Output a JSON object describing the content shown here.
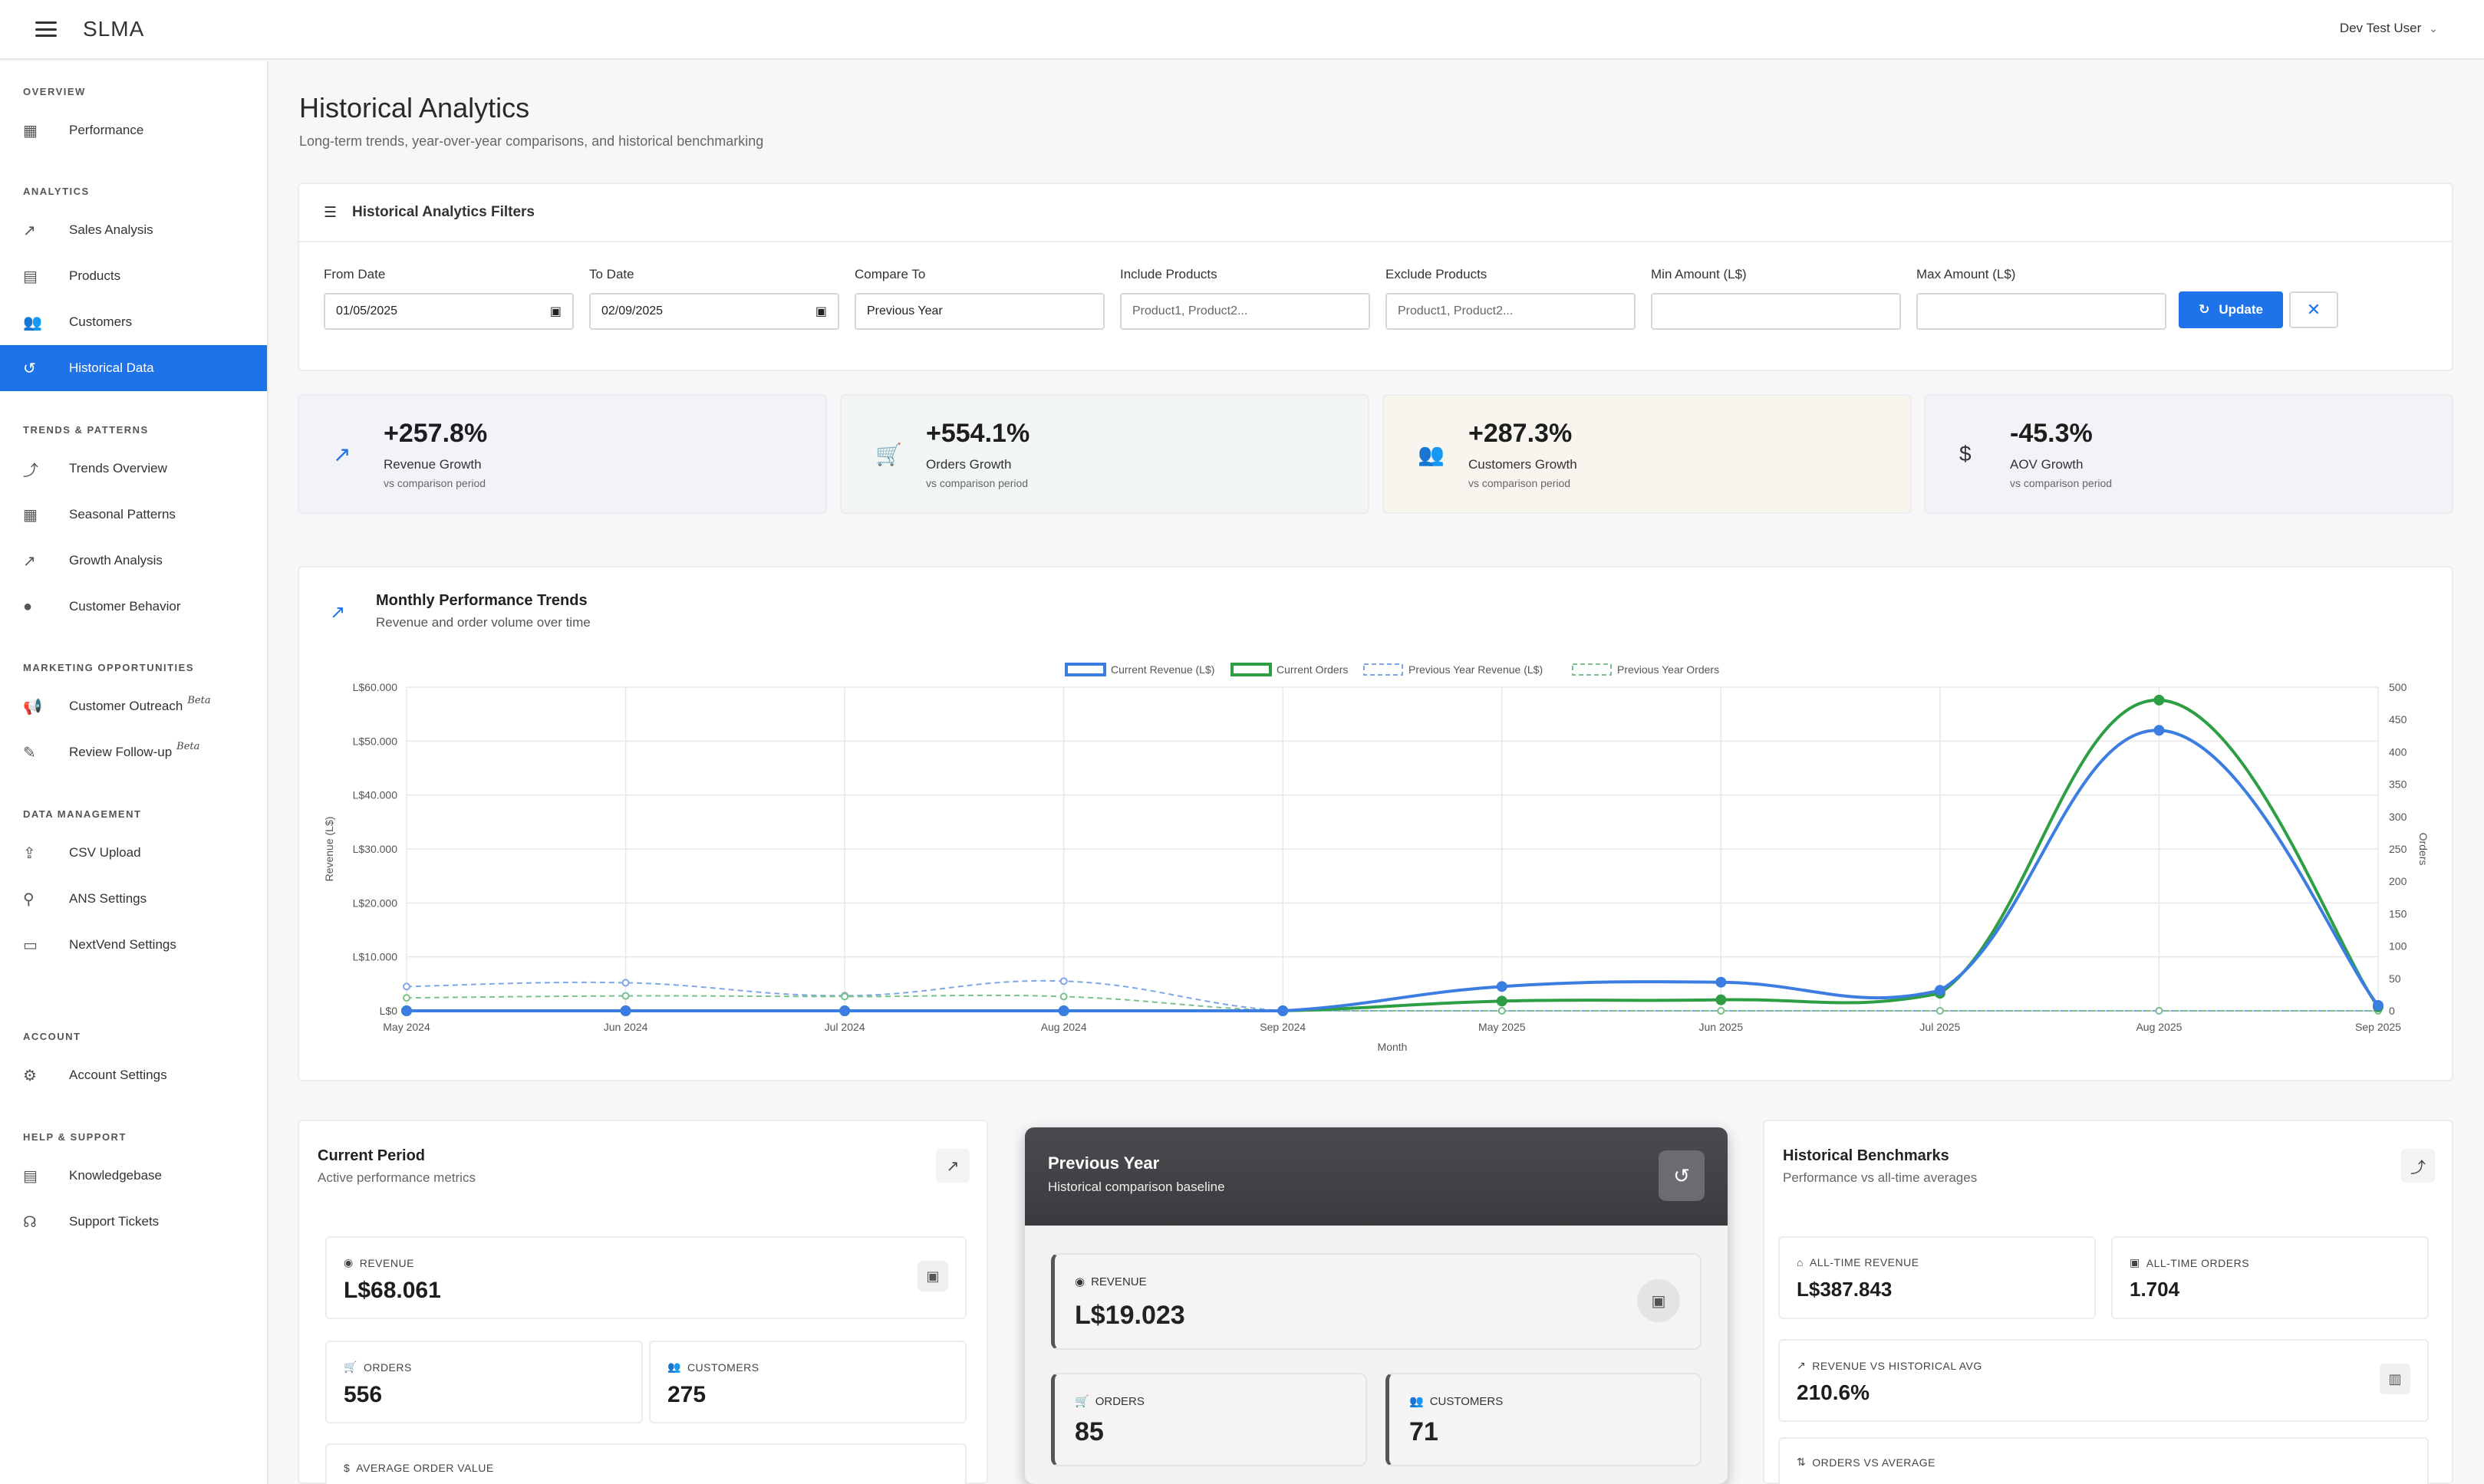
{
  "app": {
    "title": "SLMA",
    "user": "Dev Test User"
  },
  "sidebar": {
    "sections": [
      {
        "title": "OVERVIEW",
        "items": [
          {
            "label": "Performance",
            "icon": "dashboard-icon"
          }
        ]
      },
      {
        "title": "ANALYTICS",
        "items": [
          {
            "label": "Sales Analysis",
            "icon": "trending-up-icon"
          },
          {
            "label": "Products",
            "icon": "inventory-icon"
          },
          {
            "label": "Customers",
            "icon": "people-icon"
          },
          {
            "label": "Historical Data",
            "icon": "history-icon",
            "active": true
          }
        ]
      },
      {
        "title": "TRENDS & PATTERNS",
        "items": [
          {
            "label": "Trends Overview",
            "icon": "multiline-chart-icon"
          },
          {
            "label": "Seasonal Patterns",
            "icon": "calendar-icon"
          },
          {
            "label": "Growth Analysis",
            "icon": "show-chart-icon"
          },
          {
            "label": "Customer Behavior",
            "icon": "psychology-icon"
          }
        ]
      },
      {
        "title": "MARKETING OPPORTUNITIES",
        "items": [
          {
            "label": "Customer Outreach",
            "icon": "campaign-icon",
            "badge": "Beta"
          },
          {
            "label": "Review Follow-up",
            "icon": "rate-review-icon",
            "badge": "Beta"
          }
        ]
      },
      {
        "title": "DATA MANAGEMENT",
        "items": [
          {
            "label": "CSV Upload",
            "icon": "upload-file-icon"
          },
          {
            "label": "ANS Settings",
            "icon": "webhook-icon"
          },
          {
            "label": "NextVend Settings",
            "icon": "vending-icon"
          }
        ]
      },
      {
        "title": "ACCOUNT",
        "items": [
          {
            "label": "Account Settings",
            "icon": "settings-icon"
          }
        ]
      },
      {
        "title": "HELP & SUPPORT",
        "items": [
          {
            "label": "Knowledgebase",
            "icon": "library-books-icon"
          },
          {
            "label": "Support Tickets",
            "icon": "support-agent-icon"
          }
        ]
      }
    ]
  },
  "page": {
    "title": "Historical Analytics",
    "subtitle": "Long-term trends, year-over-year comparisons, and historical benchmarking"
  },
  "filters": {
    "title": "Historical Analytics Filters",
    "from_date": {
      "label": "From Date",
      "value": "01/05/2025"
    },
    "to_date": {
      "label": "To Date",
      "value": "02/09/2025"
    },
    "compare_to": {
      "label": "Compare To",
      "value": "Previous Year"
    },
    "include_products": {
      "label": "Include Products",
      "placeholder": "Product1, Product2..."
    },
    "exclude_products": {
      "label": "Exclude Products",
      "placeholder": "Product1, Product2..."
    },
    "min_amount": {
      "label": "Min Amount (L$)",
      "value": ""
    },
    "max_amount": {
      "label": "Max Amount (L$)",
      "value": ""
    },
    "update_label": "Update"
  },
  "kpis": [
    {
      "value": "+257.8%",
      "label": "Revenue Growth",
      "sub": "vs comparison period",
      "icon": "trending-up-icon",
      "bg": "#f1f3f9"
    },
    {
      "value": "+554.1%",
      "label": "Orders Growth",
      "sub": "vs comparison period",
      "icon": "cart-icon",
      "bg": "#f1f5f3"
    },
    {
      "value": "+287.3%",
      "label": "Customers Growth",
      "sub": "vs comparison period",
      "icon": "people-icon",
      "bg": "#f8f5ef"
    },
    {
      "value": "-45.3%",
      "label": "AOV Growth",
      "sub": "vs comparison period",
      "icon": "dollar-icon",
      "bg": "#f4f1f7"
    }
  ],
  "chart_data": {
    "type": "line",
    "title": "Monthly Performance Trends",
    "subtitle": "Revenue and order volume over time",
    "categories": [
      "May 2024",
      "Jun 2024",
      "Jul 2024",
      "Aug 2024",
      "Sep 2024",
      "May 2025",
      "Jun 2025",
      "Jul 2025",
      "Aug 2025",
      "Sep 2025"
    ],
    "xlabel": "Month",
    "ylabel": "Revenue (L$)",
    "y2label": "Orders",
    "ylim": [
      0,
      60000
    ],
    "y2lim": [
      0,
      500
    ],
    "yticks": [
      "L$0",
      "L$10.000",
      "L$20.000",
      "L$30.000",
      "L$40.000",
      "L$50.000",
      "L$60.000"
    ],
    "y2ticks": [
      "0",
      "50",
      "100",
      "150",
      "200",
      "250",
      "300",
      "350",
      "400",
      "450",
      "500"
    ],
    "legend_position": "top",
    "series": [
      {
        "name": "Current Revenue (L$)",
        "axis": "left",
        "color": "#3b7de0",
        "dashed": false,
        "values": [
          0,
          0,
          0,
          0,
          0,
          4500,
          5300,
          3800,
          52000,
          1000
        ]
      },
      {
        "name": "Current Orders",
        "axis": "right",
        "color": "#2e9e44",
        "dashed": false,
        "values": [
          0,
          0,
          0,
          0,
          0,
          15,
          17,
          27,
          480,
          6
        ]
      },
      {
        "name": "Previous Year Revenue (L$)",
        "axis": "left",
        "color": "#7fa7e6",
        "dashed": true,
        "values": [
          4500,
          5200,
          2800,
          5500,
          0,
          0,
          0,
          0,
          0,
          0
        ]
      },
      {
        "name": "Previous Year Orders",
        "axis": "right",
        "color": "#7cc08b",
        "dashed": true,
        "values": [
          20,
          23,
          22,
          22,
          0,
          0,
          0,
          0,
          0,
          0
        ]
      }
    ],
    "grid": true
  },
  "current_period": {
    "title": "Current Period",
    "subtitle": "Active performance metrics",
    "revenue": {
      "label": "REVENUE",
      "value": "L$68.061"
    },
    "orders": {
      "label": "ORDERS",
      "value": "556"
    },
    "customers": {
      "label": "CUSTOMERS",
      "value": "275"
    },
    "aov": {
      "label": "AVERAGE ORDER VALUE"
    }
  },
  "previous_year": {
    "title": "Previous Year",
    "subtitle": "Historical comparison baseline",
    "revenue": {
      "label": "REVENUE",
      "value": "L$19.023"
    },
    "orders": {
      "label": "ORDERS",
      "value": "85"
    },
    "customers": {
      "label": "CUSTOMERS",
      "value": "71"
    }
  },
  "benchmarks": {
    "title": "Historical Benchmarks",
    "subtitle": "Performance vs all-time averages",
    "all_time_revenue": {
      "label": "ALL-TIME REVENUE",
      "value": "L$387.843"
    },
    "all_time_orders": {
      "label": "ALL-TIME ORDERS",
      "value": "1.704"
    },
    "rev_vs_avg": {
      "label": "REVENUE VS HISTORICAL AVG",
      "value": "210.6%"
    },
    "orders_vs_avg": {
      "label": "ORDERS VS AVERAGE"
    }
  }
}
